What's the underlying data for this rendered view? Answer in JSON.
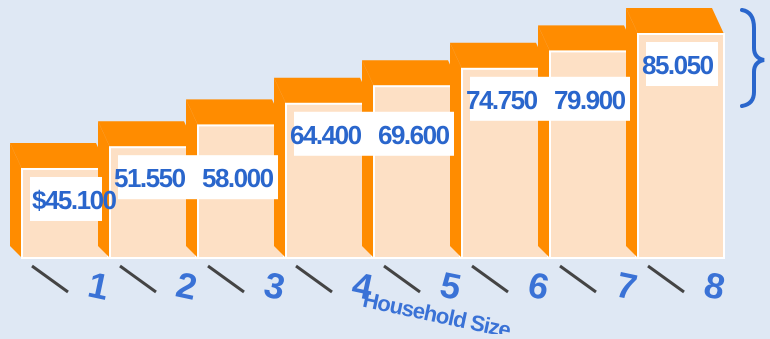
{
  "chart_data": {
    "type": "bar",
    "title": "",
    "xlabel": "Household Size",
    "ylabel": "",
    "categories": [
      "1",
      "2",
      "3",
      "4",
      "5",
      "6",
      "7",
      "8"
    ],
    "values": [
      45100,
      51550,
      58000,
      64400,
      69600,
      74750,
      79900,
      85050
    ],
    "value_labels": [
      "$45.100",
      "51.550",
      "58.000",
      "64.400",
      "69.600",
      "74.750",
      "79.900",
      "85.050"
    ],
    "grid": false,
    "legend": "none"
  },
  "colors": {
    "background": "#dfe8f4",
    "bar_face": "#fde0c5",
    "bar_top": "#ff8c00",
    "bar_side": "#ff8c00",
    "label_text": "#2a66cc",
    "axis_text": "#3a72d6",
    "brace": "#2a66cc"
  }
}
